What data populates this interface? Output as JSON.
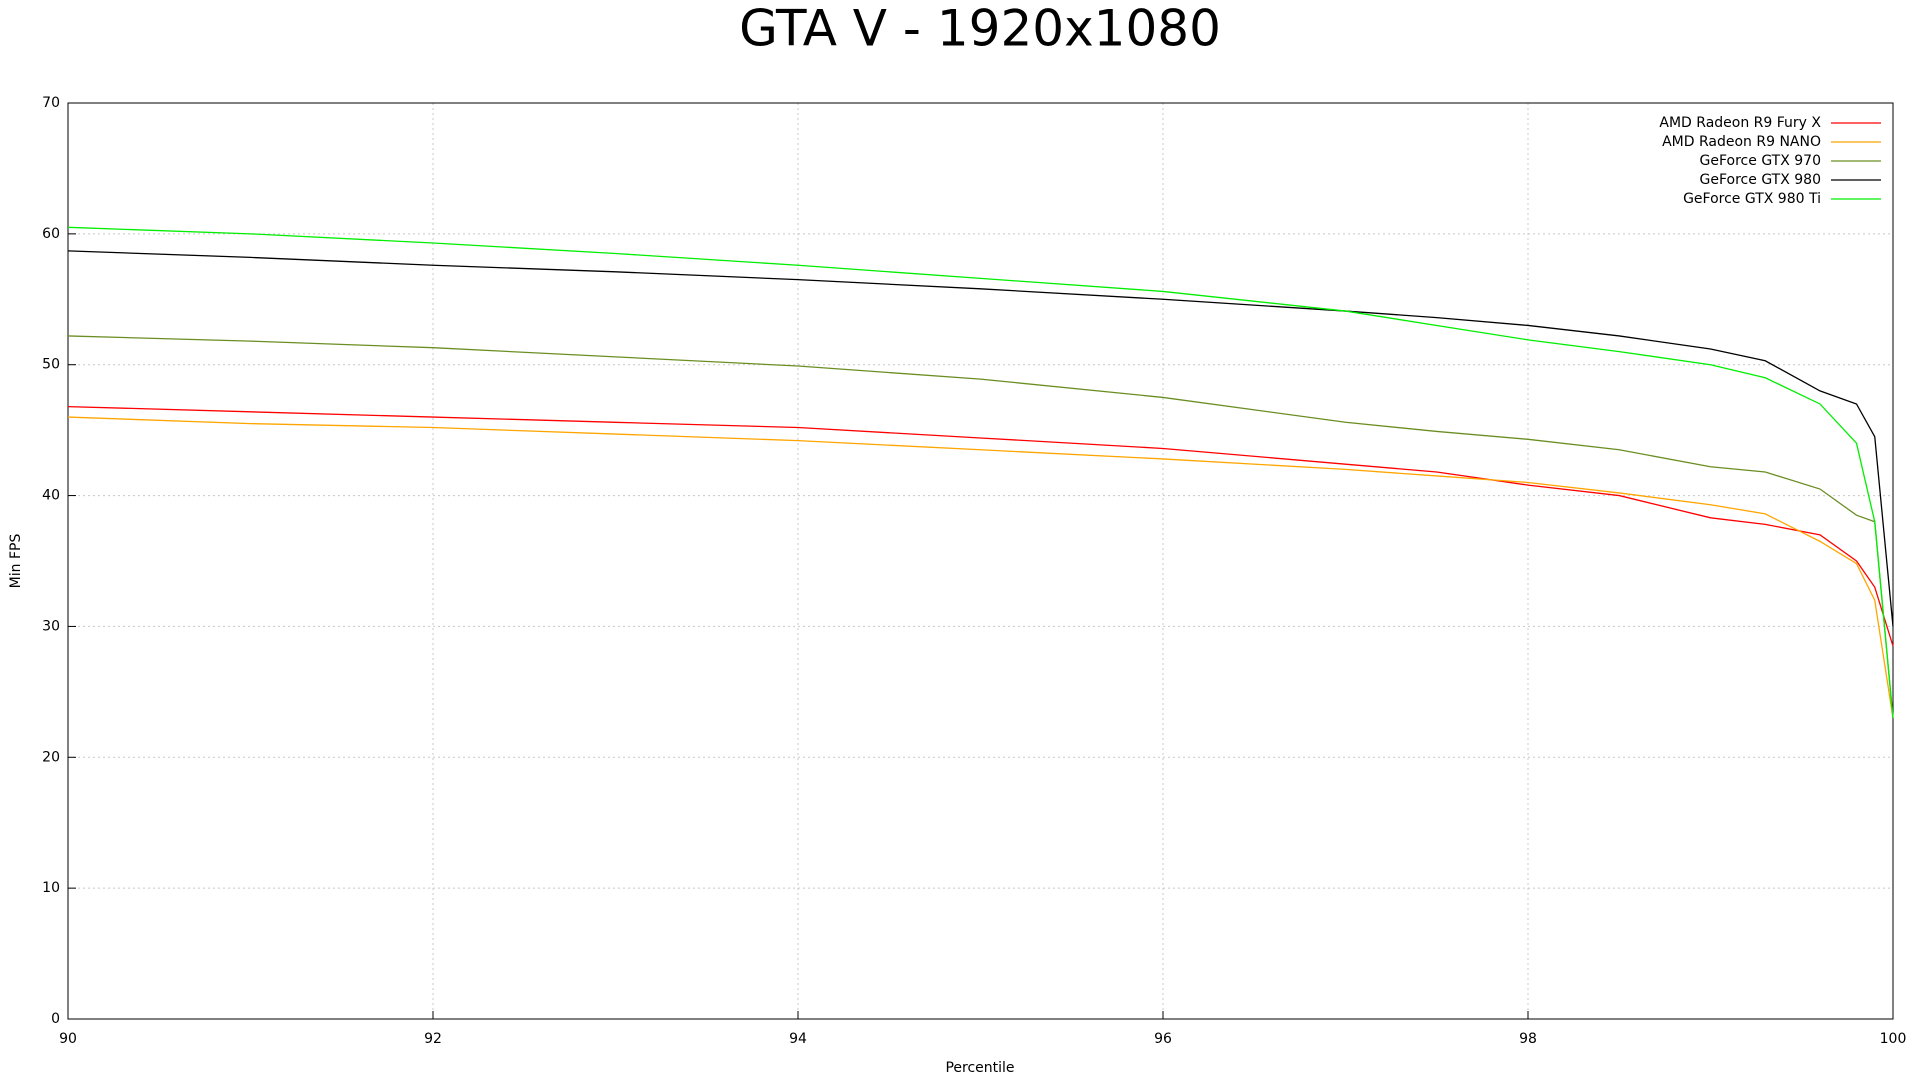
{
  "chart_data": {
    "type": "line",
    "title": "GTA V - 1920x1080",
    "x_label": "Percentile",
    "y_label": "Min FPS",
    "x": [
      90,
      91,
      92,
      93,
      94,
      95,
      96,
      97,
      97.5,
      98,
      98.5,
      99,
      99.3,
      99.6,
      99.8,
      99.9,
      100
    ],
    "series": [
      {
        "name": "AMD Radeon R9 Fury X",
        "color": "#ff0000",
        "values": [
          46.8,
          46.4,
          46.0,
          45.6,
          45.2,
          44.4,
          43.6,
          42.4,
          41.8,
          40.8,
          40.0,
          38.3,
          37.8,
          37.0,
          35.0,
          33.0,
          28.5
        ]
      },
      {
        "name": "AMD Radeon R9 NANO",
        "color": "#ffa500",
        "values": [
          46.0,
          45.5,
          45.2,
          44.7,
          44.2,
          43.5,
          42.8,
          42.0,
          41.5,
          41.0,
          40.2,
          39.3,
          38.6,
          36.5,
          34.8,
          32.0,
          23
        ]
      },
      {
        "name": "GeForce GTX 970",
        "color": "#6b8e23",
        "values": [
          52.2,
          51.8,
          51.3,
          50.6,
          49.9,
          48.9,
          47.5,
          45.6,
          44.9,
          44.3,
          43.5,
          42.2,
          41.8,
          40.5,
          38.5,
          38.0,
          23
        ]
      },
      {
        "name": "GeForce GTX 980",
        "color": "#000000",
        "values": [
          58.7,
          58.2,
          57.6,
          57.1,
          56.5,
          55.8,
          55.0,
          54.1,
          53.6,
          53.0,
          52.2,
          51.2,
          50.3,
          48.0,
          47.0,
          44.5,
          30
        ]
      },
      {
        "name": "GeForce GTX 980 Ti",
        "color": "#00ee00",
        "values": [
          60.5,
          60.0,
          59.3,
          58.5,
          57.6,
          56.6,
          55.6,
          54.1,
          53.0,
          51.9,
          51.0,
          50.0,
          49.0,
          47.0,
          44.0,
          38.0,
          23
        ]
      }
    ],
    "xlim": [
      90,
      100
    ],
    "xticks": [
      90,
      92,
      94,
      96,
      98,
      100
    ],
    "ylim": [
      0,
      70
    ],
    "yticks": [
      0,
      10,
      20,
      30,
      40,
      50,
      60,
      70
    ],
    "grid": true,
    "legend": "top-right"
  }
}
